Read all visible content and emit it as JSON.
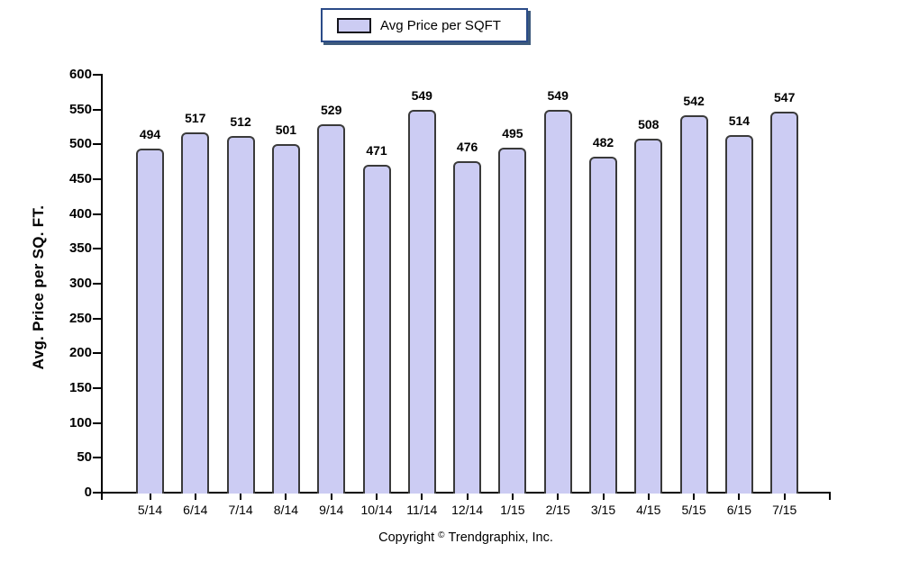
{
  "legend": {
    "label": "Avg Price per SQFT",
    "swatch_color": "#ccccf3"
  },
  "footer": {
    "copyright_prefix": "Copyright",
    "copyright_symbol": "©",
    "copyright_company": "Trendgraphix, Inc."
  },
  "chart_data": {
    "type": "bar",
    "title": "",
    "categories": [
      "5/14",
      "6/14",
      "7/14",
      "8/14",
      "9/14",
      "10/14",
      "11/14",
      "12/14",
      "1/15",
      "2/15",
      "3/15",
      "4/15",
      "5/15",
      "6/15",
      "7/15"
    ],
    "values": [
      494,
      517,
      512,
      501,
      529,
      471,
      549,
      476,
      495,
      549,
      482,
      508,
      542,
      514,
      547
    ],
    "series_name": "Avg Price per SQFT",
    "xlabel": "",
    "ylabel": "Avg. Price per SQ. FT.",
    "ylim": [
      0,
      600
    ],
    "ytick_step": 50,
    "grid": false,
    "legend_position": "top-center",
    "data_labels": true,
    "bar_fill": "#ccccf3",
    "bar_border": "#3a3a3a",
    "axis_color": "#000000"
  }
}
